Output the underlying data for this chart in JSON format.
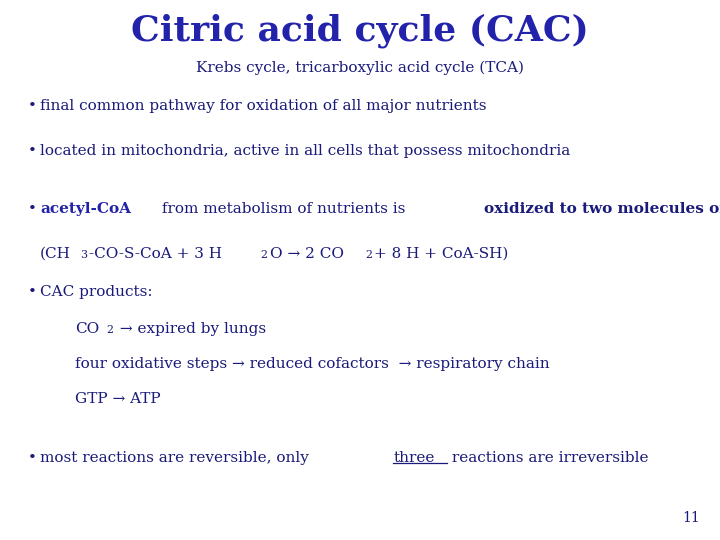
{
  "title": "Citric acid cycle (CAC)",
  "subtitle": "Krebs cycle, tricarboxylic acid cycle (TCA)",
  "title_color": "#2222aa",
  "body_color": "#1a1a7a",
  "bg_color": "#ffffff",
  "page_number": "11",
  "title_fontsize": 26,
  "subtitle_fontsize": 11,
  "body_fontsize": 11,
  "figsize": [
    7.2,
    5.4
  ],
  "dpi": 100
}
